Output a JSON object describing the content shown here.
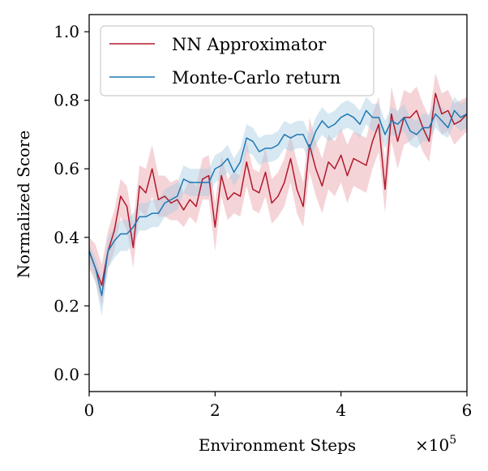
{
  "chart_data": {
    "type": "line",
    "title": "",
    "xlabel": "Environment Steps",
    "ylabel": "Normalized Score",
    "x_multiplier_label": "×10",
    "x_multiplier_exponent": "5",
    "xlim": [
      0,
      6
    ],
    "ylim": [
      -0.05,
      1.05
    ],
    "x_ticks": [
      0,
      2,
      4,
      6
    ],
    "x_tick_labels": [
      "0",
      "2",
      "4",
      "6"
    ],
    "y_ticks": [
      0.0,
      0.2,
      0.4,
      0.6,
      0.8,
      1.0
    ],
    "y_tick_labels": [
      "0.0",
      "0.2",
      "0.4",
      "0.6",
      "0.8",
      "1.0"
    ],
    "grid": false,
    "legend_position": "top-left",
    "x": [
      0.0,
      0.1,
      0.2,
      0.3,
      0.4,
      0.5,
      0.6,
      0.7,
      0.8,
      0.9,
      1.0,
      1.1,
      1.2,
      1.3,
      1.4,
      1.5,
      1.6,
      1.7,
      1.8,
      1.9,
      2.0,
      2.1,
      2.2,
      2.3,
      2.4,
      2.5,
      2.6,
      2.7,
      2.8,
      2.9,
      3.0,
      3.1,
      3.2,
      3.3,
      3.4,
      3.5,
      3.6,
      3.7,
      3.8,
      3.9,
      4.0,
      4.1,
      4.2,
      4.3,
      4.4,
      4.5,
      4.6,
      4.7,
      4.8,
      4.9,
      5.0,
      5.1,
      5.2,
      5.3,
      5.4,
      5.5,
      5.6,
      5.7,
      5.8,
      5.9,
      6.0
    ],
    "series": [
      {
        "name": "NN Approximator",
        "color": "#b2182b",
        "fill": "#e8a0a8",
        "values": [
          0.36,
          0.31,
          0.26,
          0.36,
          0.42,
          0.52,
          0.49,
          0.37,
          0.55,
          0.53,
          0.6,
          0.51,
          0.52,
          0.5,
          0.51,
          0.48,
          0.51,
          0.49,
          0.57,
          0.58,
          0.43,
          0.58,
          0.51,
          0.53,
          0.52,
          0.62,
          0.54,
          0.53,
          0.59,
          0.5,
          0.52,
          0.56,
          0.63,
          0.54,
          0.49,
          0.67,
          0.6,
          0.55,
          0.62,
          0.6,
          0.64,
          0.58,
          0.63,
          0.62,
          0.61,
          0.68,
          0.73,
          0.54,
          0.76,
          0.68,
          0.75,
          0.75,
          0.77,
          0.72,
          0.68,
          0.82,
          0.76,
          0.77,
          0.73,
          0.74,
          0.76
        ],
        "lower": [
          0.31,
          0.27,
          0.2,
          0.31,
          0.36,
          0.46,
          0.42,
          0.31,
          0.48,
          0.46,
          0.52,
          0.46,
          0.46,
          0.45,
          0.45,
          0.43,
          0.46,
          0.44,
          0.51,
          0.51,
          0.36,
          0.52,
          0.45,
          0.47,
          0.46,
          0.55,
          0.48,
          0.47,
          0.52,
          0.44,
          0.46,
          0.49,
          0.56,
          0.47,
          0.43,
          0.59,
          0.52,
          0.47,
          0.54,
          0.52,
          0.56,
          0.5,
          0.55,
          0.54,
          0.53,
          0.6,
          0.65,
          0.47,
          0.68,
          0.6,
          0.67,
          0.68,
          0.7,
          0.65,
          0.62,
          0.75,
          0.7,
          0.71,
          0.67,
          0.69,
          0.71
        ],
        "upper": [
          0.4,
          0.38,
          0.32,
          0.42,
          0.48,
          0.57,
          0.55,
          0.44,
          0.61,
          0.6,
          0.67,
          0.58,
          0.58,
          0.56,
          0.57,
          0.53,
          0.57,
          0.55,
          0.63,
          0.64,
          0.5,
          0.64,
          0.57,
          0.59,
          0.58,
          0.68,
          0.6,
          0.59,
          0.66,
          0.57,
          0.59,
          0.63,
          0.7,
          0.62,
          0.56,
          0.75,
          0.68,
          0.63,
          0.7,
          0.68,
          0.72,
          0.67,
          0.71,
          0.7,
          0.69,
          0.76,
          0.81,
          0.62,
          0.84,
          0.76,
          0.83,
          0.82,
          0.84,
          0.79,
          0.75,
          0.88,
          0.82,
          0.83,
          0.79,
          0.8,
          0.81
        ]
      },
      {
        "name": "Monte-Carlo return",
        "color": "#1f77b4",
        "fill": "#a6cbe3",
        "values": [
          0.36,
          0.31,
          0.23,
          0.36,
          0.39,
          0.41,
          0.41,
          0.43,
          0.46,
          0.46,
          0.47,
          0.47,
          0.5,
          0.51,
          0.52,
          0.57,
          0.56,
          0.56,
          0.56,
          0.56,
          0.6,
          0.61,
          0.63,
          0.59,
          0.62,
          0.69,
          0.68,
          0.65,
          0.66,
          0.66,
          0.67,
          0.7,
          0.69,
          0.7,
          0.7,
          0.66,
          0.71,
          0.74,
          0.72,
          0.73,
          0.75,
          0.76,
          0.75,
          0.73,
          0.77,
          0.75,
          0.75,
          0.7,
          0.74,
          0.73,
          0.75,
          0.71,
          0.7,
          0.72,
          0.72,
          0.76,
          0.74,
          0.72,
          0.77,
          0.75,
          0.76
        ],
        "lower": [
          0.33,
          0.27,
          0.17,
          0.31,
          0.34,
          0.36,
          0.36,
          0.38,
          0.42,
          0.42,
          0.43,
          0.43,
          0.46,
          0.47,
          0.48,
          0.53,
          0.52,
          0.52,
          0.52,
          0.52,
          0.56,
          0.57,
          0.59,
          0.55,
          0.58,
          0.65,
          0.64,
          0.61,
          0.62,
          0.62,
          0.63,
          0.66,
          0.65,
          0.66,
          0.66,
          0.62,
          0.67,
          0.7,
          0.68,
          0.69,
          0.71,
          0.72,
          0.71,
          0.69,
          0.73,
          0.71,
          0.71,
          0.66,
          0.7,
          0.69,
          0.71,
          0.67,
          0.66,
          0.68,
          0.68,
          0.72,
          0.7,
          0.69,
          0.73,
          0.71,
          0.72
        ],
        "upper": [
          0.38,
          0.34,
          0.28,
          0.4,
          0.43,
          0.45,
          0.45,
          0.47,
          0.5,
          0.5,
          0.51,
          0.51,
          0.54,
          0.55,
          0.56,
          0.61,
          0.6,
          0.6,
          0.6,
          0.6,
          0.64,
          0.65,
          0.67,
          0.63,
          0.66,
          0.73,
          0.72,
          0.69,
          0.7,
          0.7,
          0.71,
          0.74,
          0.73,
          0.74,
          0.74,
          0.7,
          0.75,
          0.78,
          0.76,
          0.77,
          0.79,
          0.8,
          0.79,
          0.77,
          0.81,
          0.79,
          0.79,
          0.74,
          0.78,
          0.77,
          0.79,
          0.75,
          0.74,
          0.76,
          0.76,
          0.8,
          0.78,
          0.76,
          0.81,
          0.79,
          0.8
        ]
      }
    ]
  }
}
